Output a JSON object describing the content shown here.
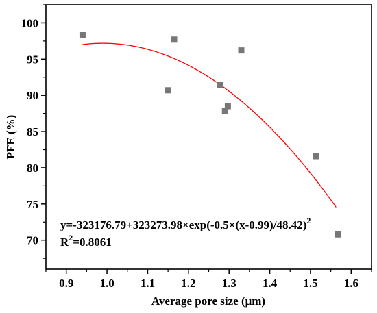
{
  "chart_data": {
    "type": "scatter",
    "xlabel": "Average pore size (μm)",
    "ylabel": "PFE (%)",
    "xlim": [
      0.85,
      1.65
    ],
    "ylim": [
      66,
      102.5
    ],
    "xticks": [
      "0.9",
      "1.0",
      "1.1",
      "1.2",
      "1.3",
      "1.4",
      "1.5",
      "1.6"
    ],
    "yticks": [
      "70",
      "75",
      "80",
      "85",
      "90",
      "95",
      "100"
    ],
    "points": [
      {
        "x": 0.94,
        "y": 98.3
      },
      {
        "x": 1.15,
        "y": 90.7
      },
      {
        "x": 1.165,
        "y": 97.7
      },
      {
        "x": 1.278,
        "y": 91.4
      },
      {
        "x": 1.29,
        "y": 87.8
      },
      {
        "x": 1.297,
        "y": 88.5
      },
      {
        "x": 1.33,
        "y": 96.2
      },
      {
        "x": 1.513,
        "y": 81.6
      },
      {
        "x": 1.568,
        "y": 70.8
      }
    ],
    "fit": {
      "a": -323176.79,
      "b": 323273.98,
      "xc": 0.99,
      "w": 48.42,
      "x_range": [
        0.94,
        1.563
      ],
      "color": "#ff0000"
    },
    "equation": {
      "main": "y=-323176.79+323273.98×exp(-0.5×(x-0.99)/48.42)",
      "sup": "2"
    },
    "r2": {
      "prefix": "R",
      "sup": "2",
      "value": "=0.8061"
    },
    "marker_color": "#777777",
    "grid": false
  }
}
